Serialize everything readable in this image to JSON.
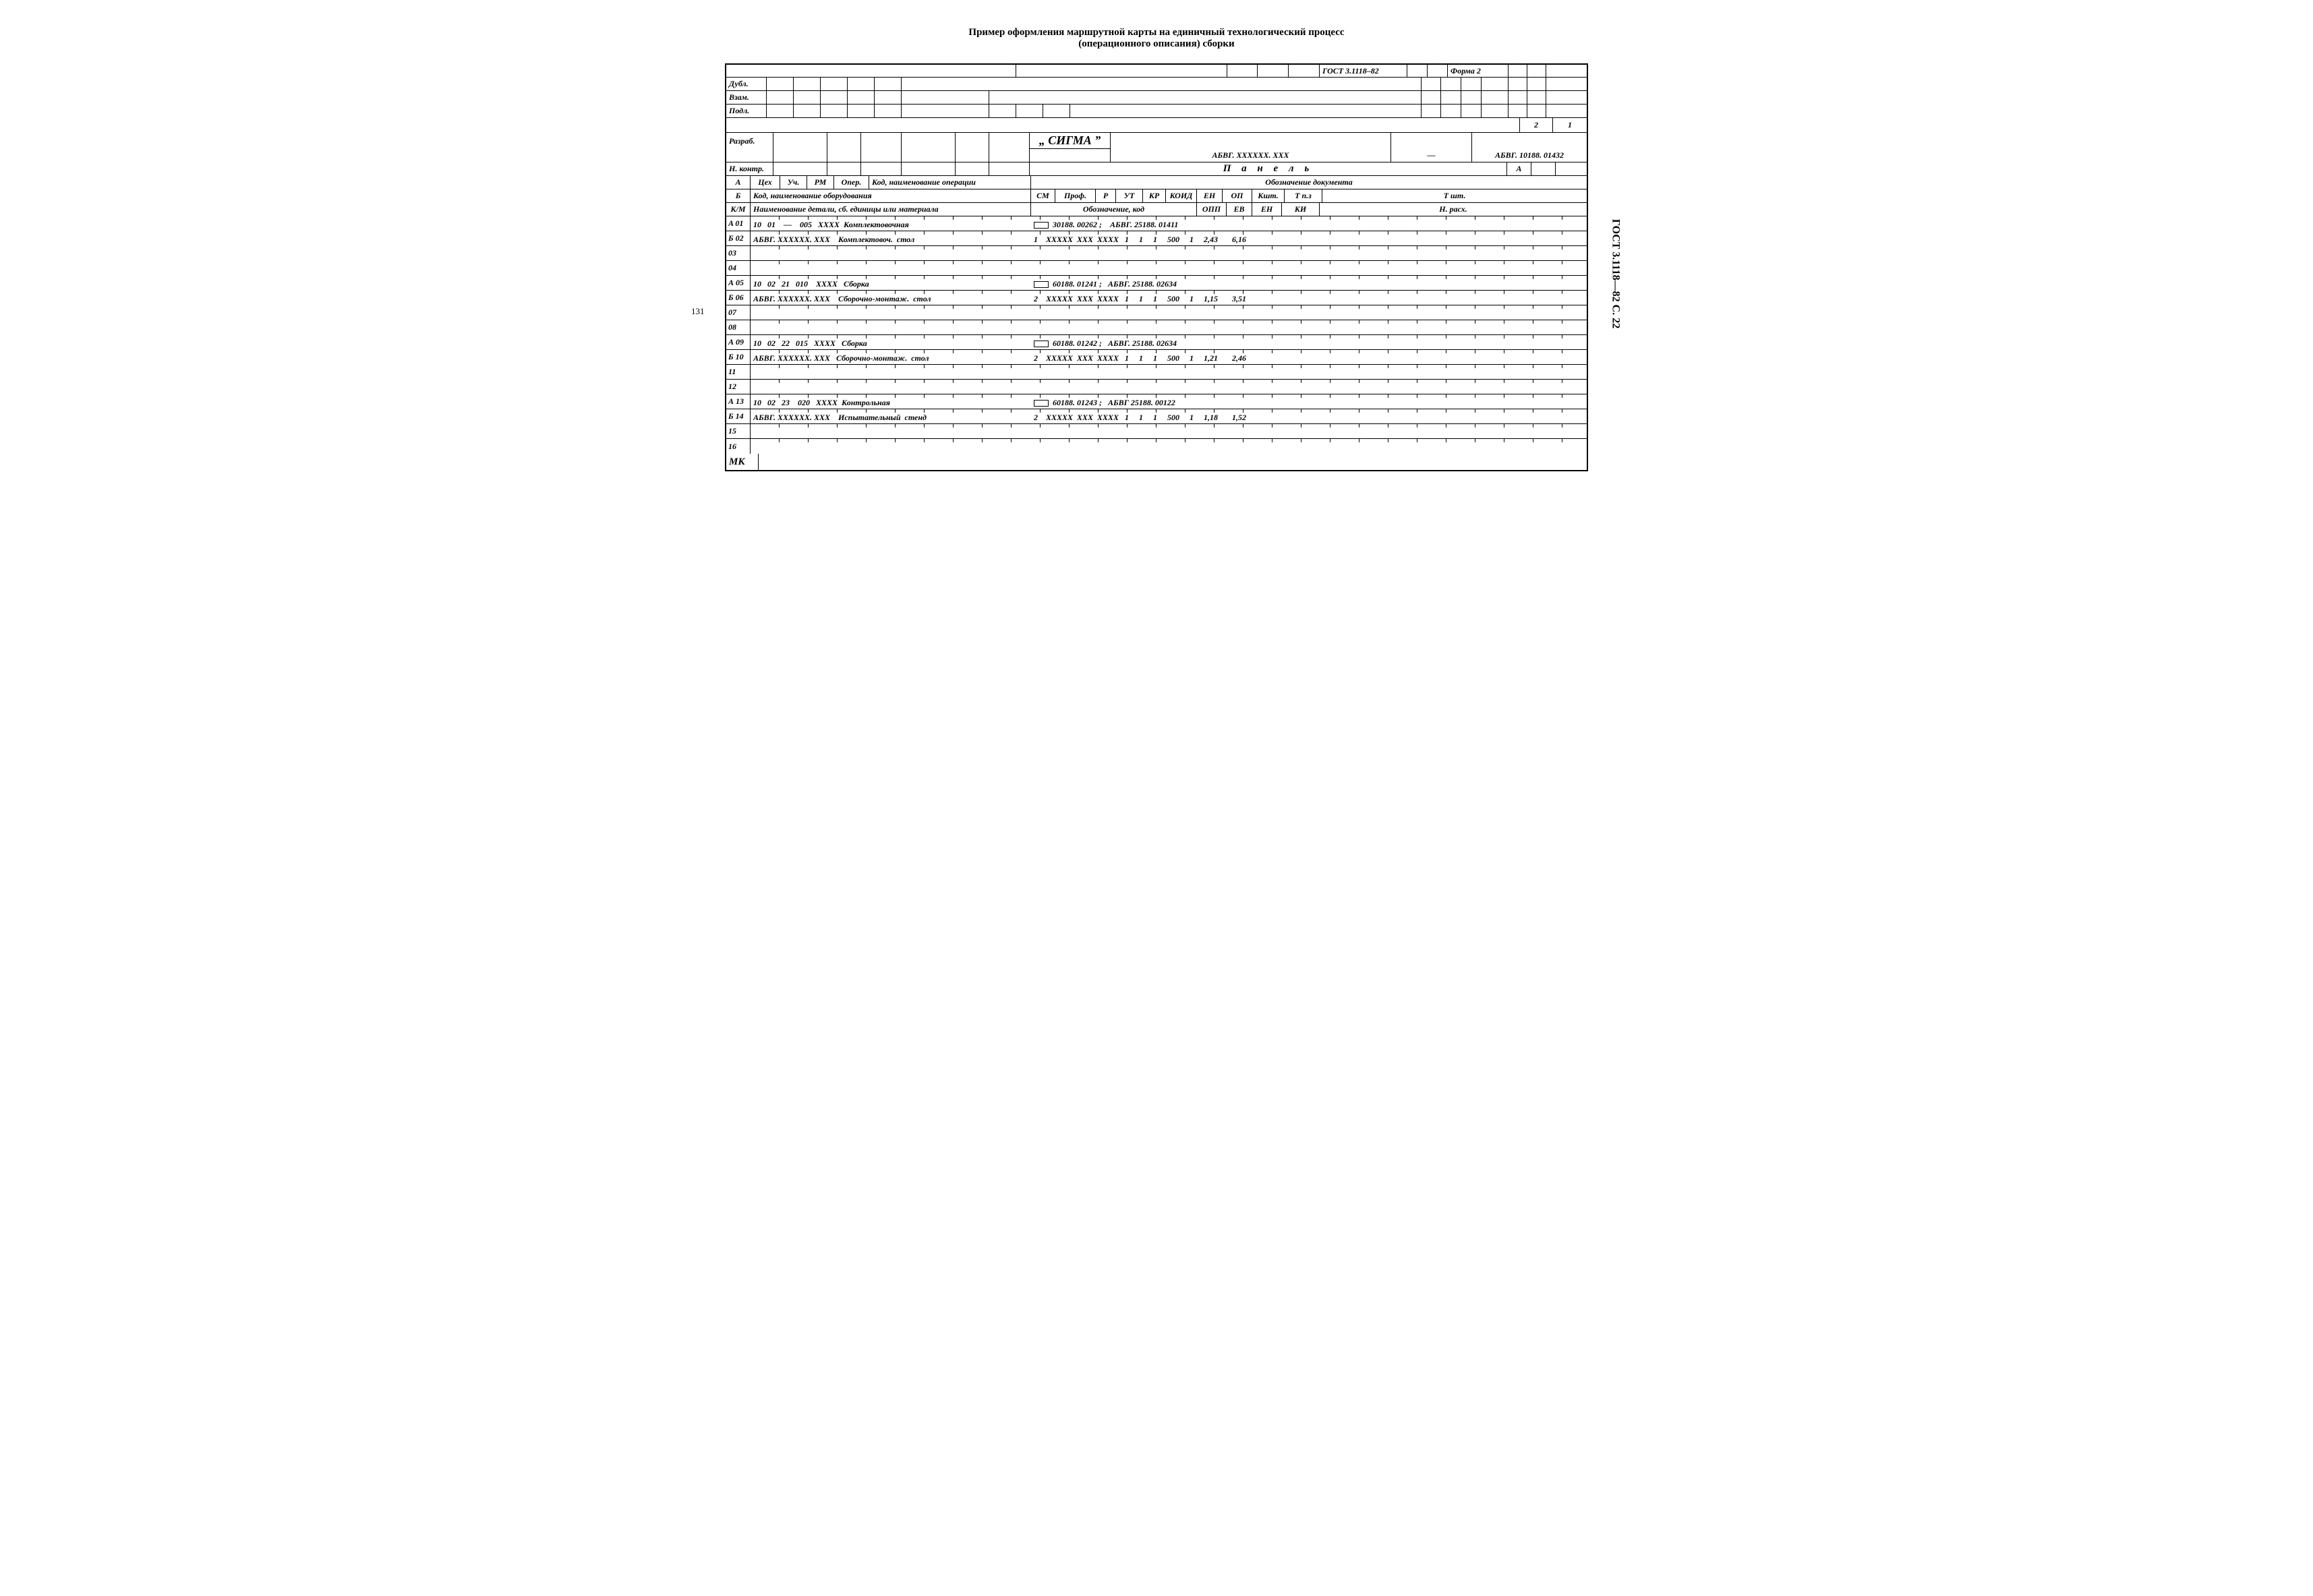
{
  "title": {
    "line1": "Пример оформления маршрутной карты на единичный технологический процесс",
    "line2": "(операционного описания) сборки"
  },
  "header": {
    "gost": "ГОСТ 3.1118–82",
    "form": "Форма 2",
    "dubl": "Дубл.",
    "vzam": "Взам.",
    "podl": "Подл.",
    "page_cur": "2",
    "page_total": "1",
    "razrab": "Разраб.",
    "sigma": "„ СИГМА ”",
    "abvg_x": "АБВГ. ХХХХХХ. ХХХ",
    "dash": "—",
    "abvg_num": "АБВГ. 10188. 01432",
    "nkontr": "Н. контр.",
    "panel": "П а н е л ь",
    "A_lbl": "А"
  },
  "colhead_A": {
    "row": "А",
    "cex": "Цех",
    "uch": "Уч.",
    "rm": "РМ",
    "oper": "Опер.",
    "kod_op": "Код, наименование операции",
    "obozn_dok": "Обозначение  документа"
  },
  "colhead_B": {
    "row": "Б",
    "kod_ob": "Код, наименование оборудования",
    "sm": "СМ",
    "prof": "Проф.",
    "r": "Р",
    "ut": "УТ",
    "kr": "КР",
    "koid": "КОИД",
    "en": "ЕН",
    "op": "ОП",
    "ksht": "Кшт.",
    "tpz": "Т п.з",
    "tsht": "Т шт."
  },
  "colhead_K": {
    "row": "К/М",
    "label": "Наименование детали, сб. единицы или материала",
    "obozn_kod": "Обозначение,  код",
    "opp": "ОПП",
    "ev": "ЕВ",
    "en": "ЕН",
    "ki": "КИ",
    "nrasx": "Н. расх."
  },
  "rows": [
    {
      "id": "A 01",
      "left": "10   01    —    005   ХХХХ  Комплектовочная",
      "right": "30188. 00262 ;    АБВГ. 25188. 01411",
      "box": true
    },
    {
      "id": "Б 02",
      "left": "АБВГ. ХХХХХХ. ХХХ    Комплектовоч.  стол",
      "right": "1    ХХХХХ  ХХХ  ХХХХ   1     1     1     500     1     2,43       6,16"
    },
    {
      "id": "03",
      "left": "",
      "right": ""
    },
    {
      "id": "04",
      "left": "",
      "right": ""
    },
    {
      "id": "А 05",
      "left": "10   02   21   010    ХХХХ   Сборка",
      "right": "60188. 01241 ;   АБВГ. 25188. 02634",
      "box": true
    },
    {
      "id": "Б 06",
      "left": "АБВГ. ХХХХХХ. ХХХ    Сборочно-монтаж.  стол",
      "right": "2    ХХХХХ  ХХХ  ХХХХ   1     1     1     500     1     1,15       3,51"
    },
    {
      "id": "07",
      "left": "",
      "right": ""
    },
    {
      "id": "08",
      "left": "",
      "right": ""
    },
    {
      "id": "А 09",
      "left": "10   02   22   015   ХХХХ   Сборка",
      "right": "60188. 01242 ;   АБВГ. 25188. 02634",
      "box": true
    },
    {
      "id": "Б 10",
      "left": "АБВГ. ХХХХХХ. ХХХ   Сборочно-монтаж.  стол",
      "right": "2    ХХХХХ  ХХХ  ХХХХ   1     1     1     500     1     1,21       2,46"
    },
    {
      "id": "11",
      "left": "",
      "right": ""
    },
    {
      "id": "12",
      "left": "",
      "right": ""
    },
    {
      "id": "А 13",
      "left": "10   02   23    020   ХХХХ  Контрольная",
      "right": "60188. 01243 ;   АБВГ 25188. 00122",
      "box": true
    },
    {
      "id": "Б 14",
      "left": "АБВГ. ХХХХХХ. ХХХ    Испытательный  стенд",
      "right": "2    ХХХХХ  ХХХ  ХХХХ   1     1     1     500     1     1,18       1,52"
    },
    {
      "id": "15",
      "left": "",
      "right": ""
    },
    {
      "id": "16",
      "left": "",
      "right": ""
    }
  ],
  "footer": {
    "mk": "МК"
  },
  "margins": {
    "pagenum": "131",
    "side_gost": "ГОСТ 3.1118—82 С. 22"
  }
}
